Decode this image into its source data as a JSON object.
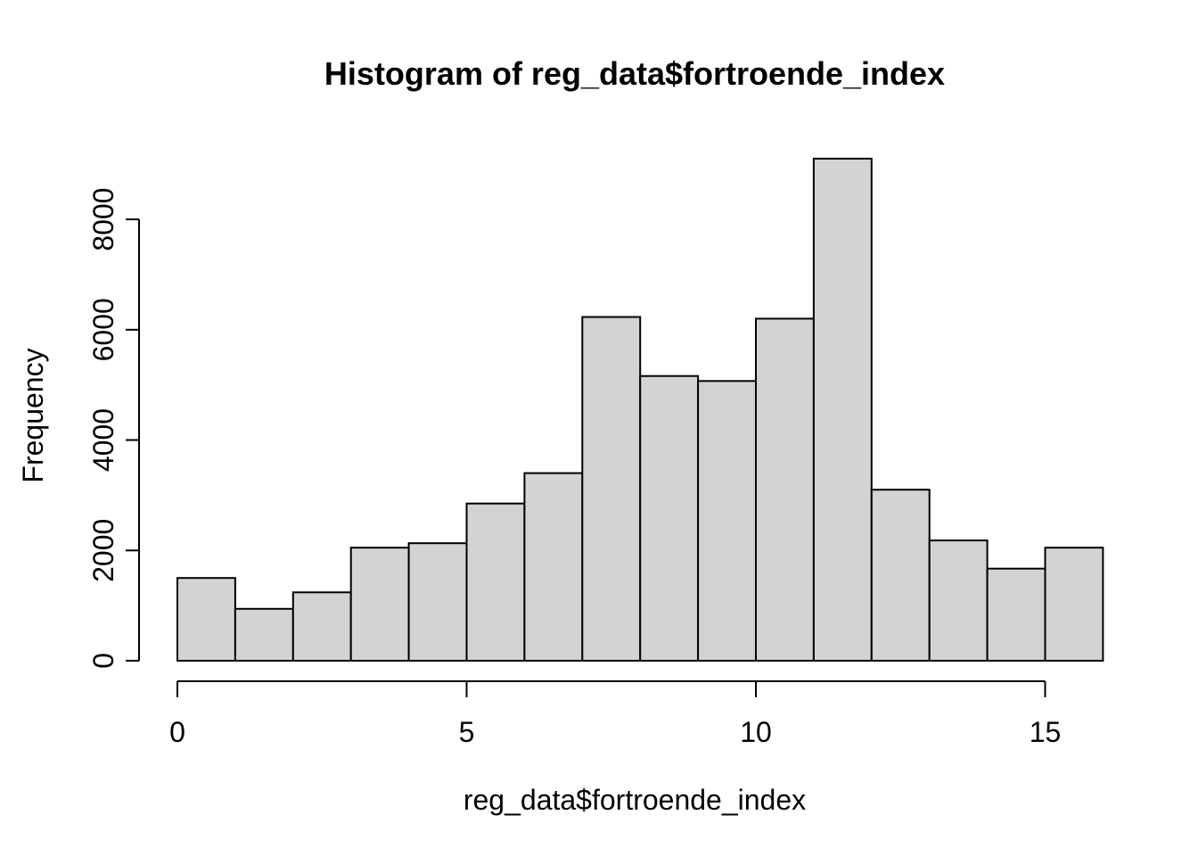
{
  "chart_data": {
    "type": "bar",
    "subtype": "histogram",
    "title": "Histogram of reg_data$fortroende_index",
    "xlabel": "reg_data$fortroende_index",
    "ylabel": "Frequency",
    "bin_edges": [
      0,
      1,
      2,
      3,
      4,
      5,
      6,
      7,
      8,
      9,
      10,
      11,
      12,
      13,
      14,
      15,
      16
    ],
    "counts": [
      1500,
      940,
      1240,
      2050,
      2130,
      2850,
      3400,
      6230,
      5160,
      5070,
      6200,
      9100,
      3100,
      2180,
      1670,
      2050
    ],
    "x_ticks": [
      0,
      5,
      10,
      15
    ],
    "y_ticks": [
      0,
      2000,
      4000,
      6000,
      8000
    ],
    "xlim": [
      0,
      16
    ],
    "ylim": [
      0,
      9100
    ],
    "grid": false,
    "legend": null,
    "bar_fill": "#d3d3d3",
    "bar_stroke": "#000000",
    "axis_color": "#000000",
    "text_color": "#000000"
  }
}
